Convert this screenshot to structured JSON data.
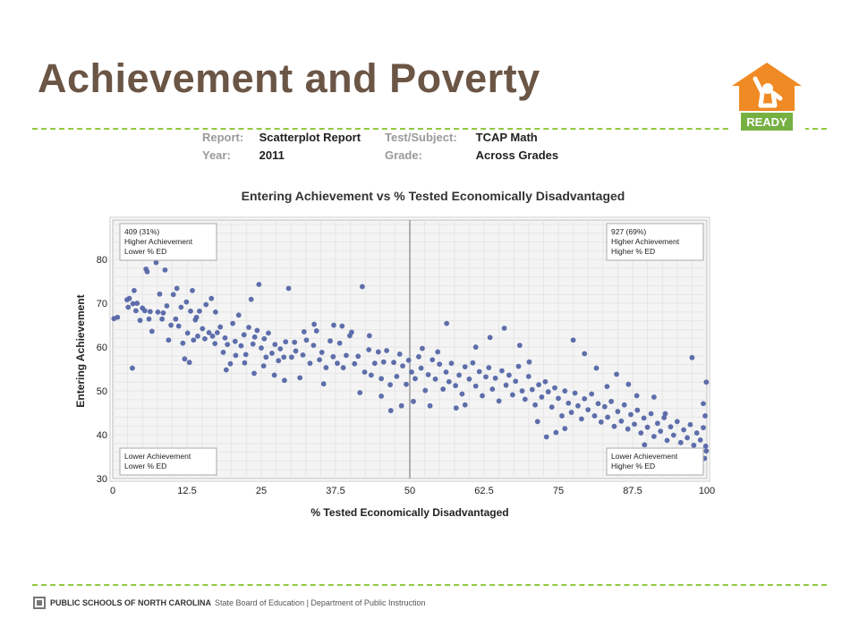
{
  "slide": {
    "title": "Achievement and Poverty"
  },
  "logo": {
    "text": "READY"
  },
  "report": {
    "report_label": "Report:",
    "report_value": "Scatterplot Report",
    "subject_label": "Test/Subject:",
    "subject_value": "TCAP Math",
    "year_label": "Year:",
    "year_value": "2011",
    "grade_label": "Grade:",
    "grade_value": "Across Grades"
  },
  "footer": {
    "org": "PUBLIC SCHOOLS OF NORTH CAROLINA",
    "rest": "State Board of Education | Department of Public Instruction"
  },
  "colors": {
    "title": "#6b5545",
    "dash": "#93c83e",
    "point": "#5566a6",
    "logo_orange": "#f08a24",
    "logo_green": "#76b043"
  },
  "chart_data": {
    "type": "scatter",
    "title": "Entering Achievement vs % Tested Economically Disadvantaged",
    "xlabel": "% Tested Economically Disadvantaged",
    "ylabel": "Entering Achievement",
    "xlim": [
      0,
      100
    ],
    "ylim": [
      30,
      89
    ],
    "x_ticks": [
      "0",
      "12.5",
      "25",
      "37.5",
      "50",
      "62.5",
      "75",
      "87.5",
      "100"
    ],
    "y_ticks": [
      "30",
      "40",
      "50",
      "60",
      "70",
      "80"
    ],
    "grid": true,
    "reference_line_x": 50,
    "quadrants": [
      {
        "position": "top-left",
        "lines": [
          "409 (31%)",
          "Higher Achievement",
          "Lower % ED"
        ]
      },
      {
        "position": "top-right",
        "lines": [
          "927 (69%)",
          "Higher Achievement",
          "Higher % ED"
        ]
      },
      {
        "position": "bottom-left",
        "lines": [
          "Lower Achievement",
          "Lower % ED"
        ]
      },
      {
        "position": "bottom-right",
        "lines": [
          "Lower Achievement",
          "Higher % ED"
        ]
      }
    ],
    "series": [
      {
        "values": [
          [
            0.2,
            66.5
          ],
          [
            0.8,
            66.8
          ],
          [
            2.4,
            70.8
          ],
          [
            2.6,
            69.1
          ],
          [
            2.8,
            71.1
          ],
          [
            3.3,
            55.2
          ],
          [
            3.4,
            69.9
          ],
          [
            3.6,
            72.9
          ],
          [
            3.9,
            68.3
          ],
          [
            4.1,
            70.0
          ],
          [
            4.6,
            66.1
          ],
          [
            5.0,
            68.9
          ],
          [
            5.4,
            68.3
          ],
          [
            5.6,
            77.8
          ],
          [
            5.8,
            77.2
          ],
          [
            6.1,
            66.4
          ],
          [
            6.3,
            68.1
          ],
          [
            6.6,
            63.6
          ],
          [
            7.3,
            79.3
          ],
          [
            7.6,
            68.0
          ],
          [
            7.9,
            72.1
          ],
          [
            8.3,
            66.4
          ],
          [
            8.5,
            67.8
          ],
          [
            8.8,
            77.6
          ],
          [
            9.1,
            69.4
          ],
          [
            9.4,
            61.6
          ],
          [
            9.8,
            65.0
          ],
          [
            10.2,
            72.0
          ],
          [
            10.6,
            66.4
          ],
          [
            11.1,
            64.8
          ],
          [
            11.5,
            69.1
          ],
          [
            11.8,
            60.9
          ],
          [
            12.1,
            57.3
          ],
          [
            12.6,
            63.2
          ],
          [
            12.9,
            56.5
          ],
          [
            13.1,
            68.2
          ],
          [
            13.4,
            72.9
          ],
          [
            13.6,
            61.6
          ],
          [
            14.1,
            66.8
          ],
          [
            14.3,
            62.5
          ],
          [
            14.6,
            68.2
          ],
          [
            15.1,
            64.2
          ],
          [
            15.5,
            61.9
          ],
          [
            16.2,
            63.3
          ],
          [
            16.6,
            71.1
          ],
          [
            16.8,
            62.5
          ],
          [
            17.2,
            60.8
          ],
          [
            17.6,
            63.3
          ],
          [
            18.1,
            64.6
          ],
          [
            18.6,
            58.8
          ],
          [
            18.9,
            62.1
          ],
          [
            19.3,
            60.6
          ],
          [
            19.8,
            56.2
          ],
          [
            20.2,
            65.4
          ],
          [
            20.6,
            61.3
          ],
          [
            21.2,
            67.3
          ],
          [
            21.6,
            60.3
          ],
          [
            22.1,
            62.8
          ],
          [
            22.4,
            58.3
          ],
          [
            22.9,
            64.5
          ],
          [
            23.3,
            70.9
          ],
          [
            23.6,
            60.7
          ],
          [
            23.9,
            62.3
          ],
          [
            24.3,
            63.8
          ],
          [
            24.6,
            74.3
          ],
          [
            25.0,
            59.8
          ],
          [
            25.5,
            61.9
          ],
          [
            25.8,
            57.7
          ],
          [
            26.2,
            63.2
          ],
          [
            26.8,
            58.6
          ],
          [
            27.3,
            60.6
          ],
          [
            27.9,
            56.9
          ],
          [
            28.2,
            59.6
          ],
          [
            28.8,
            57.7
          ],
          [
            29.1,
            61.2
          ],
          [
            29.6,
            73.4
          ],
          [
            30.1,
            57.7
          ],
          [
            30.8,
            59.1
          ],
          [
            31.5,
            53.0
          ],
          [
            32.0,
            58.2
          ],
          [
            32.6,
            61.6
          ],
          [
            33.2,
            56.3
          ],
          [
            33.8,
            60.4
          ],
          [
            34.3,
            63.7
          ],
          [
            34.8,
            57.1
          ],
          [
            35.2,
            58.8
          ],
          [
            35.9,
            55.3
          ],
          [
            36.6,
            61.4
          ],
          [
            37.1,
            57.8
          ],
          [
            37.8,
            56.3
          ],
          [
            38.2,
            60.9
          ],
          [
            38.8,
            55.3
          ],
          [
            39.3,
            58.1
          ],
          [
            39.9,
            62.6
          ],
          [
            40.7,
            56.2
          ],
          [
            41.3,
            57.9
          ],
          [
            42.0,
            73.8
          ],
          [
            42.4,
            54.3
          ],
          [
            43.1,
            59.4
          ],
          [
            43.5,
            53.6
          ],
          [
            44.1,
            56.3
          ],
          [
            44.7,
            58.9
          ],
          [
            45.2,
            52.8
          ],
          [
            45.6,
            56.6
          ],
          [
            46.1,
            59.2
          ],
          [
            46.7,
            51.4
          ],
          [
            47.3,
            56.5
          ],
          [
            47.8,
            53.3
          ],
          [
            48.3,
            58.4
          ],
          [
            48.8,
            55.7
          ],
          [
            49.4,
            51.5
          ],
          [
            49.8,
            57.0
          ],
          [
            50.3,
            54.3
          ],
          [
            50.9,
            52.8
          ],
          [
            51.5,
            57.8
          ],
          [
            51.9,
            55.2
          ],
          [
            52.6,
            50.1
          ],
          [
            53.1,
            53.7
          ],
          [
            53.8,
            57.1
          ],
          [
            54.3,
            52.7
          ],
          [
            55.0,
            56.1
          ],
          [
            55.6,
            50.4
          ],
          [
            56.1,
            54.3
          ],
          [
            56.6,
            52.1
          ],
          [
            57.0,
            56.3
          ],
          [
            57.7,
            51.2
          ],
          [
            58.3,
            53.6
          ],
          [
            58.8,
            49.3
          ],
          [
            59.3,
            55.5
          ],
          [
            60.0,
            52.7
          ],
          [
            60.6,
            56.4
          ],
          [
            61.1,
            51.1
          ],
          [
            61.7,
            54.4
          ],
          [
            62.2,
            48.9
          ],
          [
            62.8,
            53.2
          ],
          [
            63.3,
            55.3
          ],
          [
            63.9,
            50.4
          ],
          [
            64.4,
            52.9
          ],
          [
            65.0,
            47.7
          ],
          [
            65.5,
            54.6
          ],
          [
            66.2,
            51.3
          ],
          [
            66.7,
            53.6
          ],
          [
            67.3,
            49.1
          ],
          [
            67.8,
            52.2
          ],
          [
            68.3,
            55.6
          ],
          [
            68.9,
            50.0
          ],
          [
            69.4,
            48.1
          ],
          [
            70.0,
            53.3
          ],
          [
            70.6,
            50.3
          ],
          [
            71.1,
            46.8
          ],
          [
            71.7,
            51.4
          ],
          [
            72.2,
            48.6
          ],
          [
            72.8,
            52.1
          ],
          [
            73.3,
            49.8
          ],
          [
            73.9,
            46.3
          ],
          [
            74.4,
            50.7
          ],
          [
            75.0,
            48.3
          ],
          [
            75.6,
            44.3
          ],
          [
            76.1,
            50.0
          ],
          [
            76.7,
            47.2
          ],
          [
            77.2,
            45.1
          ],
          [
            77.8,
            49.5
          ],
          [
            78.3,
            46.6
          ],
          [
            78.9,
            43.6
          ],
          [
            79.4,
            48.2
          ],
          [
            80.0,
            45.7
          ],
          [
            80.6,
            49.3
          ],
          [
            81.1,
            44.3
          ],
          [
            81.7,
            47.1
          ],
          [
            82.2,
            42.9
          ],
          [
            82.8,
            46.4
          ],
          [
            83.3,
            44.0
          ],
          [
            83.9,
            47.6
          ],
          [
            84.4,
            41.9
          ],
          [
            85.0,
            45.3
          ],
          [
            85.6,
            43.1
          ],
          [
            86.1,
            46.8
          ],
          [
            86.7,
            41.3
          ],
          [
            87.2,
            44.6
          ],
          [
            87.8,
            42.4
          ],
          [
            88.3,
            45.6
          ],
          [
            88.9,
            40.4
          ],
          [
            89.4,
            43.8
          ],
          [
            90.0,
            41.7
          ],
          [
            90.6,
            44.8
          ],
          [
            91.1,
            39.6
          ],
          [
            91.7,
            42.6
          ],
          [
            92.2,
            40.8
          ],
          [
            92.8,
            43.9
          ],
          [
            93.3,
            38.7
          ],
          [
            93.9,
            41.8
          ],
          [
            94.4,
            39.9
          ],
          [
            95.0,
            43.0
          ],
          [
            95.6,
            38.2
          ],
          [
            96.1,
            41.1
          ],
          [
            96.7,
            39.3
          ],
          [
            97.2,
            42.3
          ],
          [
            97.8,
            37.6
          ],
          [
            98.3,
            40.4
          ],
          [
            98.9,
            38.8
          ],
          [
            99.4,
            41.6
          ],
          [
            99.8,
            37.4
          ],
          [
            99.9,
            36.3
          ],
          [
            99.6,
            34.6
          ],
          [
            99.7,
            44.3
          ],
          [
            99.4,
            47.1
          ],
          [
            99.9,
            52.0
          ],
          [
            97.5,
            57.6
          ],
          [
            96.1,
            35.2
          ],
          [
            94.6,
            36.0
          ],
          [
            93.0,
            44.8
          ],
          [
            91.1,
            48.6
          ],
          [
            89.5,
            37.7
          ],
          [
            88.2,
            48.9
          ],
          [
            86.8,
            51.5
          ],
          [
            84.8,
            53.8
          ],
          [
            83.2,
            51.0
          ],
          [
            81.4,
            55.2
          ],
          [
            79.4,
            58.5
          ],
          [
            77.5,
            61.6
          ],
          [
            76.1,
            41.4
          ],
          [
            74.6,
            40.5
          ],
          [
            73.0,
            39.5
          ],
          [
            71.5,
            43.0
          ],
          [
            70.1,
            56.6
          ],
          [
            68.5,
            60.4
          ],
          [
            65.9,
            64.3
          ],
          [
            63.5,
            62.2
          ],
          [
            61.1,
            60.0
          ],
          [
            59.3,
            46.8
          ],
          [
            57.8,
            46.1
          ],
          [
            56.2,
            65.4
          ],
          [
            54.7,
            58.9
          ],
          [
            53.4,
            46.6
          ],
          [
            52.1,
            59.7
          ],
          [
            50.6,
            47.6
          ],
          [
            48.6,
            46.6
          ],
          [
            46.8,
            45.5
          ],
          [
            45.2,
            48.8
          ],
          [
            43.2,
            62.6
          ],
          [
            41.6,
            49.6
          ],
          [
            40.2,
            63.4
          ],
          [
            38.6,
            64.8
          ],
          [
            37.2,
            65.0
          ],
          [
            35.5,
            51.6
          ],
          [
            33.9,
            65.2
          ],
          [
            32.2,
            63.5
          ],
          [
            30.6,
            61.1
          ],
          [
            28.9,
            52.4
          ],
          [
            27.2,
            53.6
          ],
          [
            25.4,
            55.7
          ],
          [
            23.8,
            54.0
          ],
          [
            22.2,
            56.4
          ],
          [
            20.7,
            58.1
          ],
          [
            19.1,
            54.8
          ],
          [
            17.3,
            68.0
          ],
          [
            15.7,
            69.7
          ],
          [
            13.9,
            66.2
          ],
          [
            12.4,
            70.3
          ],
          [
            10.8,
            73.4
          ]
        ]
      }
    ]
  }
}
